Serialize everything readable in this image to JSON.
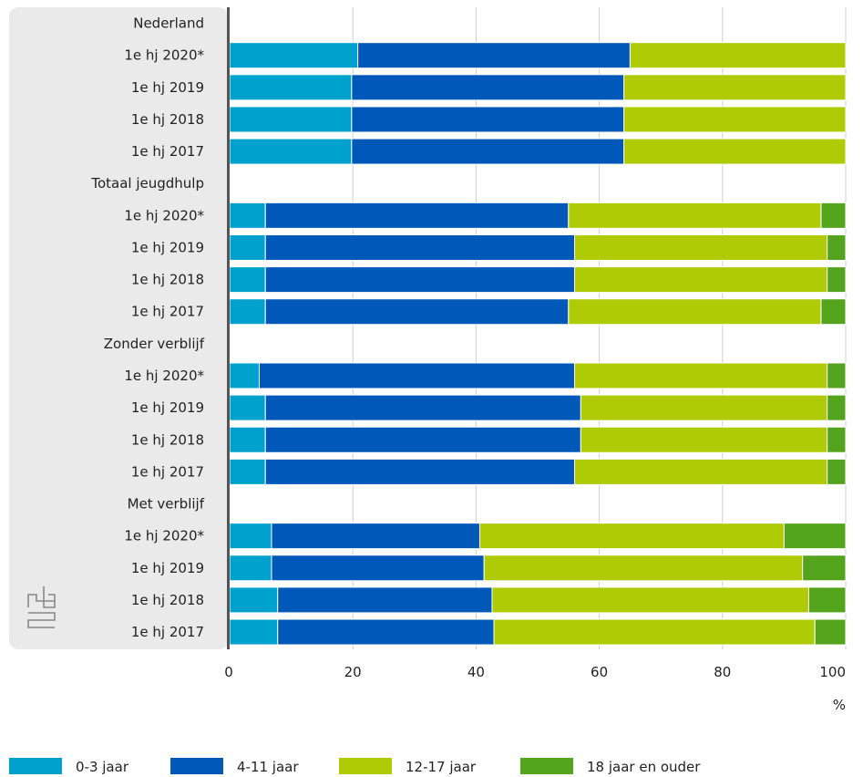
{
  "chart_data": {
    "type": "bar",
    "orientation": "horizontal",
    "stacked": true,
    "xlim": [
      0,
      100
    ],
    "x_ticks": [
      "0",
      "20",
      "40",
      "60",
      "80",
      "100"
    ],
    "x_unit": "%",
    "grid": true,
    "legend_position": "bottom",
    "groups": [
      {
        "header": "Nederland",
        "rows": [
          {
            "label": "1e hj 2020*",
            "values": [
              20.8,
              44.2,
              35.0,
              0.0
            ]
          },
          {
            "label": "1e hj 2019",
            "values": [
              19.8,
              44.2,
              36.0,
              0.0
            ]
          },
          {
            "label": "1e hj 2018",
            "values": [
              19.8,
              44.2,
              36.0,
              0.0
            ]
          },
          {
            "label": "1e hj 2017",
            "values": [
              19.8,
              44.2,
              36.0,
              0.0
            ]
          }
        ]
      },
      {
        "header": "Totaal jeugdhulp",
        "rows": [
          {
            "label": "1e hj 2020*",
            "values": [
              5.8,
              49.2,
              41.0,
              4.0
            ]
          },
          {
            "label": "1e hj 2019",
            "values": [
              5.8,
              50.2,
              41.0,
              3.0
            ]
          },
          {
            "label": "1e hj 2018",
            "values": [
              5.8,
              50.2,
              41.0,
              3.0
            ]
          },
          {
            "label": "1e hj 2017",
            "values": [
              5.8,
              49.2,
              41.0,
              4.0
            ]
          }
        ]
      },
      {
        "header": "Zonder verblijf",
        "rows": [
          {
            "label": "1e hj 2020*",
            "values": [
              4.8,
              51.2,
              41.0,
              3.0
            ]
          },
          {
            "label": "1e hj 2019",
            "values": [
              5.8,
              51.2,
              40.0,
              3.0
            ]
          },
          {
            "label": "1e hj 2018",
            "values": [
              5.8,
              51.2,
              40.0,
              3.0
            ]
          },
          {
            "label": "1e hj 2017",
            "values": [
              5.8,
              50.2,
              41.0,
              3.0
            ]
          }
        ]
      },
      {
        "header": "Met verblijf",
        "rows": [
          {
            "label": "1e hj 2020*",
            "values": [
              6.8,
              33.8,
              49.4,
              10.0
            ]
          },
          {
            "label": "1e hj 2019",
            "values": [
              6.8,
              34.5,
              51.7,
              7.0
            ]
          },
          {
            "label": "1e hj 2018",
            "values": [
              7.8,
              34.8,
              51.4,
              6.0
            ]
          },
          {
            "label": "1e hj 2017",
            "values": [
              7.8,
              35.1,
              52.1,
              5.0
            ]
          }
        ]
      }
    ],
    "series": [
      {
        "name": "0-3 jaar",
        "color": "#00a1cd"
      },
      {
        "name": "4-11 jaar",
        "color": "#0058b8"
      },
      {
        "name": "12-17 jaar",
        "color": "#afcb05"
      },
      {
        "name": "18 jaar en ouder",
        "color": "#53a31d"
      }
    ]
  },
  "logo": {
    "icon": "cbs-logo-icon"
  }
}
